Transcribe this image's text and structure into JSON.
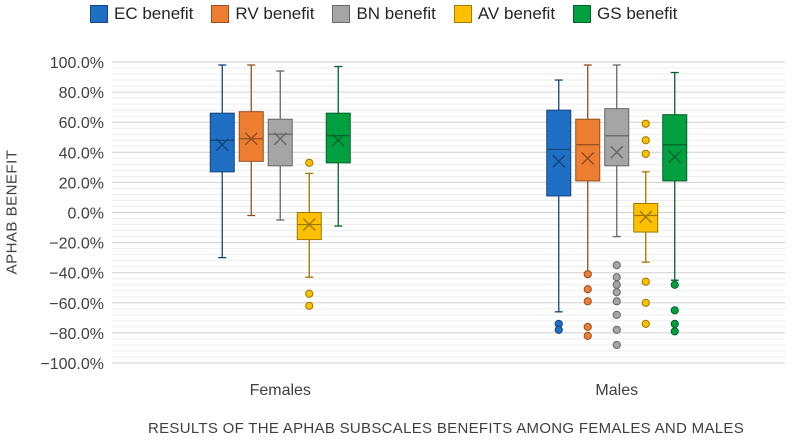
{
  "chart_data": {
    "type": "boxplot",
    "title": "",
    "xlabel": "RESULTS OF THE APHAB SUBSCALES BENEFITS AMONG FEMALES AND MALES",
    "ylabel": "APHAB BENEFIT",
    "ylim": [
      -100,
      100
    ],
    "y_ticks": [
      "100.0%",
      "80.0%",
      "60.0%",
      "40.0%",
      "20.0%",
      "0.0%",
      "−20.0%",
      "−40.0%",
      "−60.0%",
      "−80.0%",
      "−100.0%"
    ],
    "y_tick_values": [
      100,
      80,
      60,
      40,
      20,
      0,
      -20,
      -40,
      -60,
      -80,
      -100
    ],
    "categories": [
      "Females",
      "Males"
    ],
    "legend_position": "top",
    "series": [
      {
        "name": "EC benefit",
        "color": "#1F6FC5",
        "boxes": [
          {
            "min": -30,
            "q1": 27,
            "median": 48,
            "q3": 66,
            "max": 98,
            "mean": 45,
            "outliers": []
          },
          {
            "min": -66,
            "q1": 11,
            "median": 42,
            "q3": 68,
            "max": 88,
            "mean": 34,
            "outliers": [
              -74,
              -78
            ]
          }
        ]
      },
      {
        "name": "RV benefit",
        "color": "#ED7D31",
        "boxes": [
          {
            "min": -2,
            "q1": 34,
            "median": 49,
            "q3": 67,
            "max": 98,
            "mean": 49,
            "outliers": []
          },
          {
            "min": -40,
            "q1": 21,
            "median": 45,
            "q3": 62,
            "max": 98,
            "mean": 36,
            "outliers": [
              -41,
              -51,
              -59,
              -76,
              -82
            ]
          }
        ]
      },
      {
        "name": "BN benefit",
        "color": "#A5A5A5",
        "boxes": [
          {
            "min": -5,
            "q1": 31,
            "median": 52,
            "q3": 62,
            "max": 94,
            "mean": 49,
            "outliers": []
          },
          {
            "min": -16,
            "q1": 31,
            "median": 51,
            "q3": 69,
            "max": 98,
            "mean": 40,
            "outliers": [
              -35,
              -43,
              -48,
              -53,
              -59,
              -68,
              -78,
              -88
            ]
          }
        ]
      },
      {
        "name": "AV benefit",
        "color": "#FFC000",
        "boxes": [
          {
            "min": -43,
            "q1": -18,
            "median": -8,
            "q3": 0,
            "max": 26,
            "mean": -8,
            "outliers": [
              33,
              -54,
              -62
            ]
          },
          {
            "min": -33,
            "q1": -13,
            "median": -2,
            "q3": 6,
            "max": 27,
            "mean": -3,
            "outliers": [
              59,
              48,
              39,
              -46,
              -60,
              -74
            ]
          }
        ]
      },
      {
        "name": "GS benefit",
        "color": "#00A040",
        "boxes": [
          {
            "min": -9,
            "q1": 33,
            "median": 51,
            "q3": 66,
            "max": 97,
            "mean": 48,
            "outliers": []
          },
          {
            "min": -45,
            "q1": 21,
            "median": 45,
            "q3": 65,
            "max": 93,
            "mean": 37,
            "outliers": [
              -48,
              -65,
              -74,
              -79
            ]
          }
        ]
      }
    ]
  }
}
